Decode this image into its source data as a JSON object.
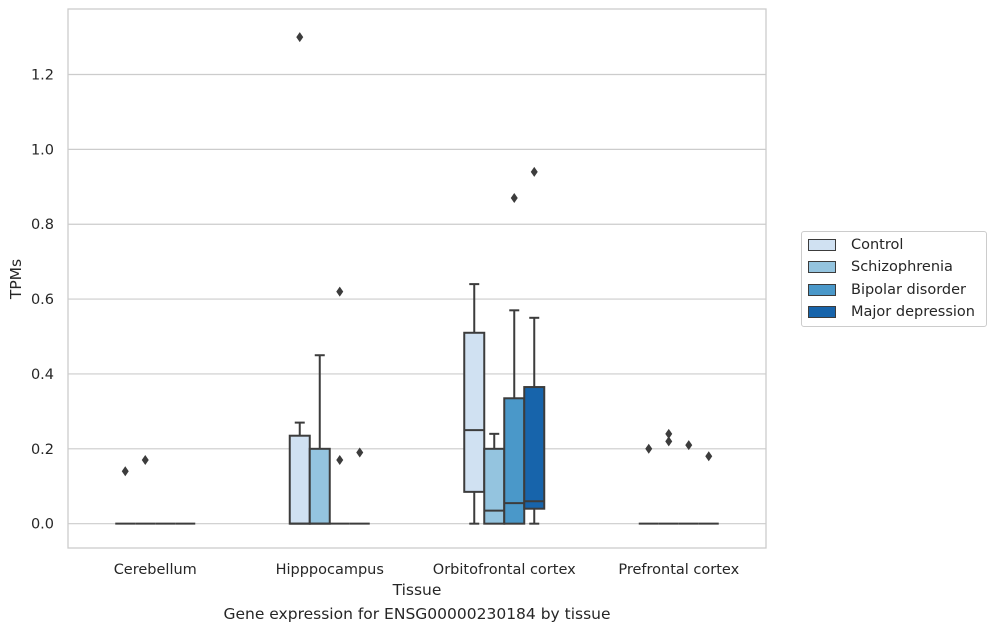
{
  "chart_data": {
    "type": "box",
    "title": "",
    "xlabel": "Tissue",
    "ylabel": "TPMs",
    "caption": "Gene expression for ENSG00000230184 by tissue",
    "ylim": [
      -0.065,
      1.375
    ],
    "yticks": [
      0.0,
      0.2,
      0.4,
      0.6,
      0.8,
      1.0,
      1.2
    ],
    "ytick_labels": [
      "0.0",
      "0.2",
      "0.4",
      "0.6",
      "0.8",
      "1.0",
      "1.2"
    ],
    "grid": "horizontal",
    "legend_position": "right",
    "categories": [
      "Cerebellum",
      "Hipppocampus",
      "Orbitofrontal cortex",
      "Prefrontal cortex"
    ],
    "series": [
      {
        "name": "Control",
        "color": "#d0e1f2",
        "boxes": [
          {
            "min": 0,
            "q1": 0,
            "median": 0,
            "q3": 0,
            "max": 0,
            "outliers": [
              0.14
            ]
          },
          {
            "min": 0,
            "q1": 0,
            "median": 0,
            "q3": 0.235,
            "max": 0.27,
            "outliers": [
              1.3
            ]
          },
          {
            "min": 0,
            "q1": 0.085,
            "median": 0.25,
            "q3": 0.51,
            "max": 0.64,
            "outliers": []
          },
          {
            "min": 0,
            "q1": 0,
            "median": 0,
            "q3": 0,
            "max": 0,
            "outliers": [
              0.2
            ]
          }
        ]
      },
      {
        "name": "Schizophrenia",
        "color": "#94c4df",
        "boxes": [
          {
            "min": 0,
            "q1": 0,
            "median": 0,
            "q3": 0,
            "max": 0,
            "outliers": [
              0.17
            ]
          },
          {
            "min": 0,
            "q1": 0,
            "median": 0,
            "q3": 0.2,
            "max": 0.45,
            "outliers": []
          },
          {
            "min": 0,
            "q1": 0,
            "median": 0.035,
            "q3": 0.2,
            "max": 0.24,
            "outliers": []
          },
          {
            "min": 0,
            "q1": 0,
            "median": 0,
            "q3": 0,
            "max": 0,
            "outliers": [
              0.24,
              0.22
            ]
          }
        ]
      },
      {
        "name": "Bipolar disorder",
        "color": "#4a98c9",
        "boxes": [
          {
            "min": 0,
            "q1": 0,
            "median": 0,
            "q3": 0,
            "max": 0,
            "outliers": []
          },
          {
            "min": 0,
            "q1": 0,
            "median": 0,
            "q3": 0,
            "max": 0,
            "outliers": [
              0.62,
              0.17
            ]
          },
          {
            "min": 0,
            "q1": 0,
            "median": 0.055,
            "q3": 0.335,
            "max": 0.57,
            "outliers": [
              0.87
            ]
          },
          {
            "min": 0,
            "q1": 0,
            "median": 0,
            "q3": 0,
            "max": 0,
            "outliers": [
              0.21
            ]
          }
        ]
      },
      {
        "name": "Major depression",
        "color": "#1764ab",
        "boxes": [
          {
            "min": 0,
            "q1": 0,
            "median": 0,
            "q3": 0,
            "max": 0,
            "outliers": []
          },
          {
            "min": 0,
            "q1": 0,
            "median": 0,
            "q3": 0,
            "max": 0,
            "outliers": [
              0.19
            ]
          },
          {
            "min": 0,
            "q1": 0.04,
            "median": 0.06,
            "q3": 0.365,
            "max": 0.55,
            "outliers": [
              0.94
            ]
          },
          {
            "min": 0,
            "q1": 0,
            "median": 0,
            "q3": 0,
            "max": 0,
            "outliers": [
              0.18
            ]
          }
        ]
      }
    ]
  }
}
